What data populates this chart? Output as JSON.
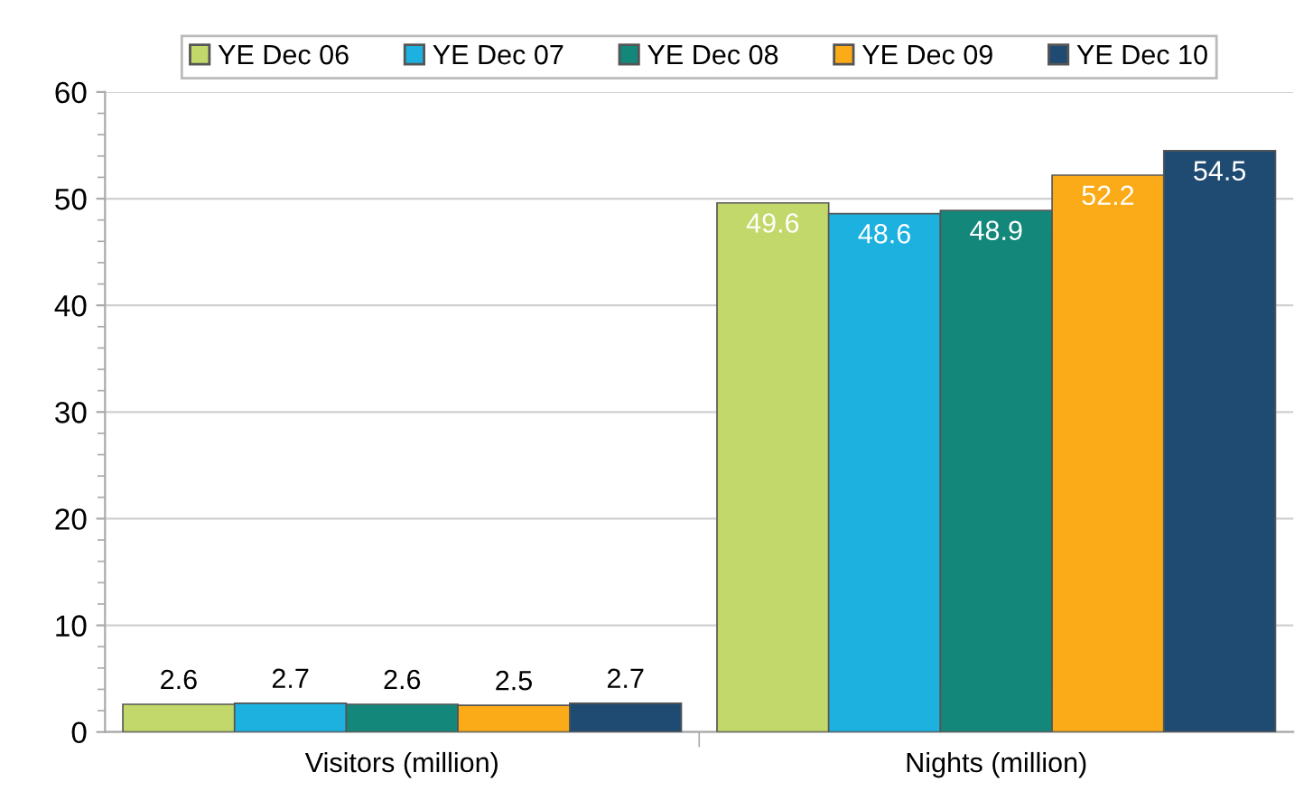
{
  "chart_data": {
    "type": "bar",
    "categories": [
      "Visitors (million)",
      "Nights (million)"
    ],
    "series": [
      {
        "name": "YE Dec 06",
        "color": "#c3d86a",
        "values": [
          2.6,
          49.6
        ]
      },
      {
        "name": "YE Dec 07",
        "color": "#1db1e0",
        "values": [
          2.7,
          48.6
        ]
      },
      {
        "name": "YE Dec 08",
        "color": "#14877b",
        "values": [
          2.6,
          48.9
        ]
      },
      {
        "name": "YE Dec 09",
        "color": "#fbab18",
        "values": [
          2.5,
          52.2
        ]
      },
      {
        "name": "YE Dec 10",
        "color": "#1f4b72",
        "values": [
          2.7,
          54.5
        ]
      }
    ],
    "ylim": [
      0,
      60
    ],
    "yticks": [
      0,
      10,
      20,
      30,
      40,
      50,
      60
    ],
    "grid": "y",
    "legend": "top",
    "data_labels": true
  }
}
